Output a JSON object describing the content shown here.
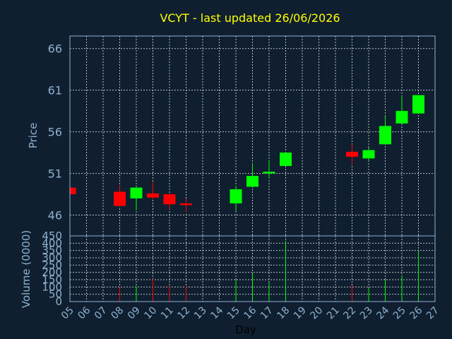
{
  "chart_data": [
    {
      "type": "candlestick",
      "title": "VCYT - last updated 26/06/2026",
      "ylabel": "Price",
      "xlabel": "Day",
      "ylim": [
        43.5,
        67.5
      ],
      "yticks": [
        46,
        51,
        56,
        61,
        66
      ],
      "grid": true,
      "x_labels": [
        "05",
        "06",
        "07",
        "08",
        "09",
        "10",
        "11",
        "12",
        "13",
        "14",
        "15",
        "16",
        "17",
        "18",
        "19",
        "20",
        "21",
        "22",
        "23",
        "24",
        "25",
        "26",
        "27"
      ],
      "candles": [
        {
          "day": "05",
          "open": 49.3,
          "high": 49.3,
          "low": 48.5,
          "close": 48.5
        },
        {
          "day": "08",
          "open": 48.8,
          "high": 49.6,
          "low": 47.0,
          "close": 47.1
        },
        {
          "day": "09",
          "open": 48.0,
          "high": 49.2,
          "low": 46.6,
          "close": 49.3
        },
        {
          "day": "10",
          "open": 48.6,
          "high": 50.0,
          "low": 47.9,
          "close": 48.1
        },
        {
          "day": "11",
          "open": 48.5,
          "high": 48.6,
          "low": 46.7,
          "close": 47.3
        },
        {
          "day": "12",
          "open": 47.4,
          "high": 48.0,
          "low": 46.3,
          "close": 47.2
        },
        {
          "day": "15",
          "open": 47.4,
          "high": 49.5,
          "low": 46.5,
          "close": 49.1
        },
        {
          "day": "16",
          "open": 49.4,
          "high": 52.2,
          "low": 49.3,
          "close": 50.7
        },
        {
          "day": "17",
          "open": 51.0,
          "high": 52.6,
          "low": 50.4,
          "close": 51.2
        },
        {
          "day": "18",
          "open": 51.9,
          "high": 53.5,
          "low": 51.9,
          "close": 53.5
        },
        {
          "day": "22",
          "open": 53.6,
          "high": 54.5,
          "low": 52.1,
          "close": 53.0
        },
        {
          "day": "23",
          "open": 52.8,
          "high": 54.1,
          "low": 52.5,
          "close": 53.8
        },
        {
          "day": "24",
          "open": 54.5,
          "high": 57.9,
          "low": 54.5,
          "close": 56.7
        },
        {
          "day": "25",
          "open": 57.0,
          "high": 60.3,
          "low": 57.0,
          "close": 58.5
        },
        {
          "day": "26",
          "open": 58.2,
          "high": 60.4,
          "low": 58.2,
          "close": 60.4
        }
      ]
    },
    {
      "type": "bar",
      "ylabel": "Volume (0000)",
      "ylim": [
        0,
        450
      ],
      "yticks": [
        0,
        50,
        100,
        150,
        200,
        250,
        300,
        350,
        400,
        450
      ],
      "grid": true,
      "volumes": [
        {
          "day": "08",
          "value": 100,
          "direction": "down"
        },
        {
          "day": "09",
          "value": 105,
          "direction": "up"
        },
        {
          "day": "10",
          "value": 155,
          "direction": "down"
        },
        {
          "day": "11",
          "value": 110,
          "direction": "down"
        },
        {
          "day": "12",
          "value": 105,
          "direction": "down"
        },
        {
          "day": "15",
          "value": 150,
          "direction": "up"
        },
        {
          "day": "16",
          "value": 190,
          "direction": "up"
        },
        {
          "day": "17",
          "value": 130,
          "direction": "up"
        },
        {
          "day": "18",
          "value": 415,
          "direction": "up"
        },
        {
          "day": "22",
          "value": 110,
          "direction": "down"
        },
        {
          "day": "23",
          "value": 95,
          "direction": "up"
        },
        {
          "day": "24",
          "value": 150,
          "direction": "up"
        },
        {
          "day": "25",
          "value": 175,
          "direction": "up"
        },
        {
          "day": "26",
          "value": 345,
          "direction": "up"
        }
      ]
    }
  ],
  "colors": {
    "background": "#0f1f30",
    "title": "#ffff00",
    "axis_text": "#8fb1cf",
    "up": "#00ff00",
    "down": "#ff0000",
    "grid": "#d8d8d8"
  }
}
